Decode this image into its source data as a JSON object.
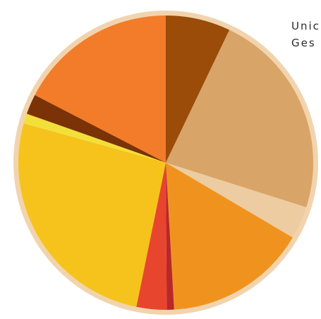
{
  "chart_data": {
    "type": "pie",
    "values": [
      7.1,
      22.8,
      3.6,
      15.6,
      0.8,
      3.3,
      26.1,
      1.1,
      2.2,
      17.4
    ],
    "colors": [
      "#9a4c08",
      "#d9a468",
      "#ecccA0",
      "#f0931e",
      "#b8282a",
      "#e8452e",
      "#f6c31c",
      "#f3df3a",
      "#7a3206",
      "#f27c2a"
    ],
    "annotations": [
      "Unic",
      "Ges"
    ]
  }
}
